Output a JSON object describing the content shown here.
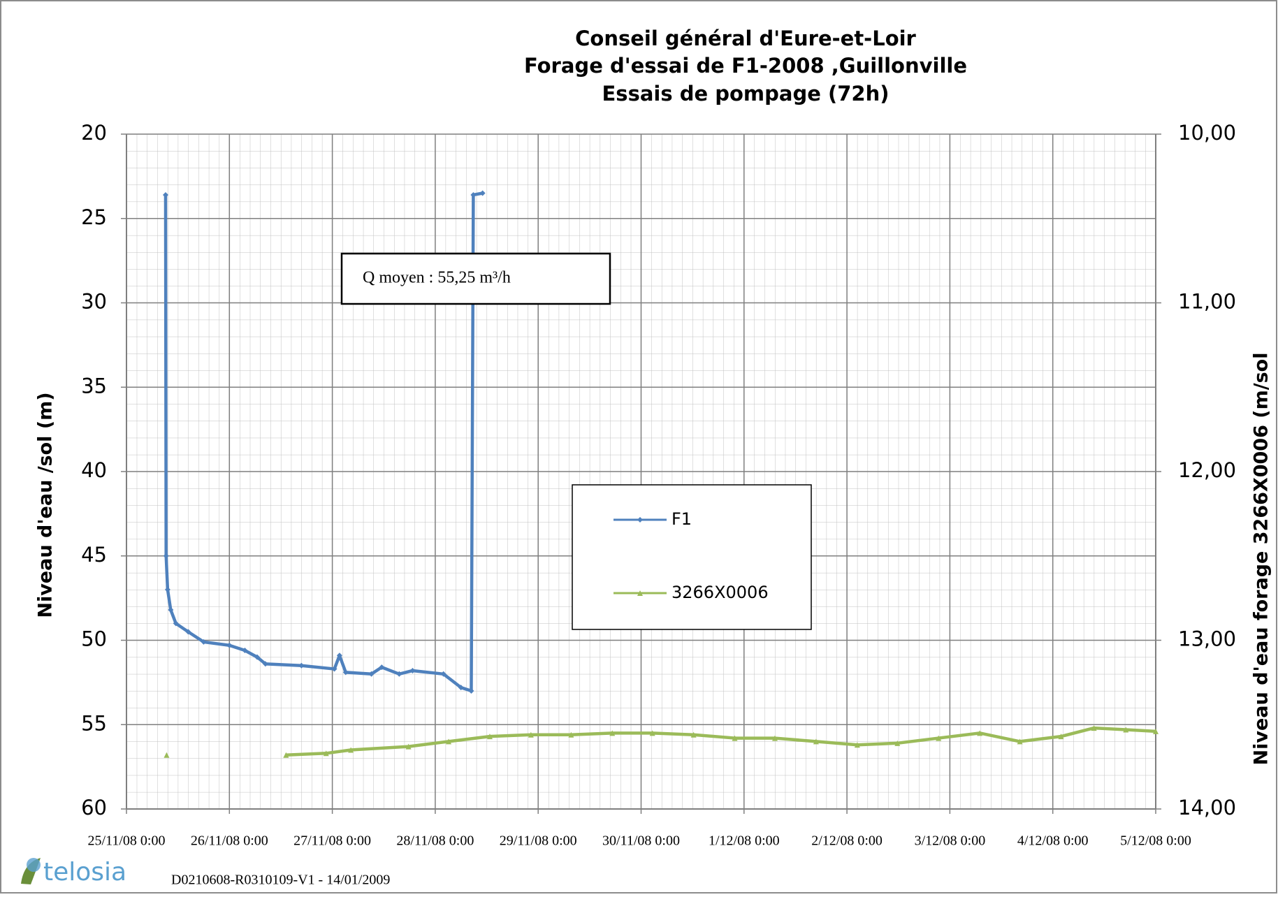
{
  "chart_data": {
    "type": "line",
    "title": [
      "Conseil général  d'Eure-et-Loir",
      "Forage d'essai de F1-2008 ,Guillonville",
      "Essais de pompage (72h)"
    ],
    "y_label": "Niveau d'eau /sol (m)",
    "y2_label": "Niveau d'eau forage 3266X0006 (m/sol",
    "annotation": "Q moyen : 55,25 m³/h",
    "footer": "D0210608-R0310109-V1 - 14/01/2009",
    "logo": "telosia",
    "xlim": [
      0,
      10
    ],
    "xticks": [
      {
        "value": 0,
        "label": "25/11/08 0:00"
      },
      {
        "value": 1,
        "label": "26/11/08 0:00"
      },
      {
        "value": 2,
        "label": "27/11/08 0:00"
      },
      {
        "value": 3,
        "label": "28/11/08 0:00"
      },
      {
        "value": 4,
        "label": "29/11/08 0:00"
      },
      {
        "value": 5,
        "label": "30/11/08 0:00"
      },
      {
        "value": 6,
        "label": "1/12/08 0:00"
      },
      {
        "value": 7,
        "label": "2/12/08 0:00"
      },
      {
        "value": 8,
        "label": "3/12/08 0:00"
      },
      {
        "value": 9,
        "label": "4/12/08 0:00"
      },
      {
        "value": 10,
        "label": "5/12/08 0:00"
      }
    ],
    "ylim": [
      20,
      60
    ],
    "yticks": [
      20,
      25,
      30,
      35,
      40,
      45,
      50,
      55,
      60
    ],
    "y_inverted": true,
    "y2lim": [
      10,
      14
    ],
    "y2ticks": [
      {
        "value": 10,
        "label": "10,00"
      },
      {
        "value": 11,
        "label": "11,00"
      },
      {
        "value": 12,
        "label": "12,00"
      },
      {
        "value": 13,
        "label": "13,00"
      },
      {
        "value": 14,
        "label": "14,00"
      }
    ],
    "y2_inverted": true,
    "grid": true,
    "minor_grid": true,
    "legend": "center",
    "series": [
      {
        "name": "F1",
        "color": "#4f81bd",
        "marker": "diamond",
        "x": [
          0.38,
          0.385,
          0.4,
          0.43,
          0.48,
          0.6,
          0.75,
          1.0,
          1.15,
          1.27,
          1.35,
          1.7,
          2.02,
          2.07,
          2.13,
          2.38,
          2.48,
          2.65,
          2.78,
          3.08,
          3.25,
          3.35,
          3.37,
          3.46
        ],
        "values": [
          23.6,
          45,
          47,
          48.2,
          49,
          49.5,
          50.1,
          50.3,
          50.6,
          51.0,
          51.4,
          51.5,
          51.7,
          50.9,
          51.9,
          52.0,
          51.6,
          52.0,
          51.8,
          52.0,
          52.8,
          53.0,
          23.6,
          23.5
        ]
      },
      {
        "name": "3266X0006",
        "color": "#9bbb59",
        "marker": "triangle",
        "axis": "y2",
        "x": [
          0.39,
          null,
          1.55,
          1.94,
          2.18,
          2.74,
          3.13,
          3.53,
          3.93,
          4.32,
          4.72,
          5.11,
          5.51,
          5.91,
          6.3,
          6.7,
          7.1,
          7.49,
          7.89,
          8.29,
          8.68,
          9.08,
          9.4,
          9.71,
          10.0
        ],
        "values": [
          13.68,
          null,
          13.68,
          13.67,
          13.65,
          13.63,
          13.6,
          13.57,
          13.56,
          13.56,
          13.55,
          13.55,
          13.56,
          13.58,
          13.58,
          13.6,
          13.62,
          13.61,
          13.58,
          13.55,
          13.6,
          13.57,
          13.52,
          13.53,
          13.54
        ]
      }
    ]
  }
}
